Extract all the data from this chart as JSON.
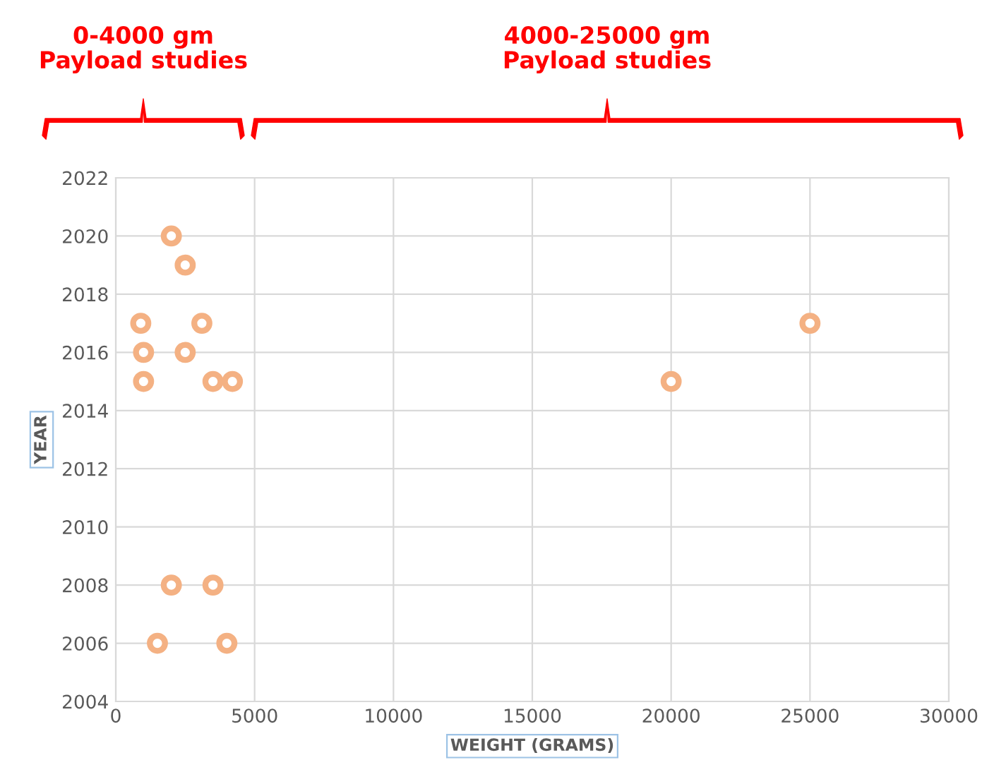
{
  "chart_data": {
    "type": "scatter",
    "xlabel": "WEIGHT (GRAMS)",
    "ylabel": "YEAR",
    "x": [
      900,
      1000,
      1000,
      2000,
      2500,
      3100,
      2500,
      3500,
      4200,
      2000,
      3500,
      1500,
      4000,
      20000,
      25000
    ],
    "values": [
      2017,
      2016,
      2015,
      2020,
      2019,
      2017,
      2016,
      2015,
      2015,
      2008,
      2008,
      2006,
      2006,
      2015,
      2017
    ],
    "color": "#f4b183",
    "marker": "circle",
    "xlim": [
      0,
      30000
    ],
    "xticks": [
      0,
      5000,
      10000,
      15000,
      20000,
      25000,
      30000
    ],
    "ylim": [
      2004,
      2022
    ],
    "yticks": [
      2004,
      2006,
      2008,
      2010,
      2012,
      2014,
      2016,
      2018,
      2020,
      2022
    ],
    "grid": true,
    "annotations": [
      "0-4000 gm\nPayload studies",
      "4000-25000 gm\nPayload studies"
    ]
  }
}
